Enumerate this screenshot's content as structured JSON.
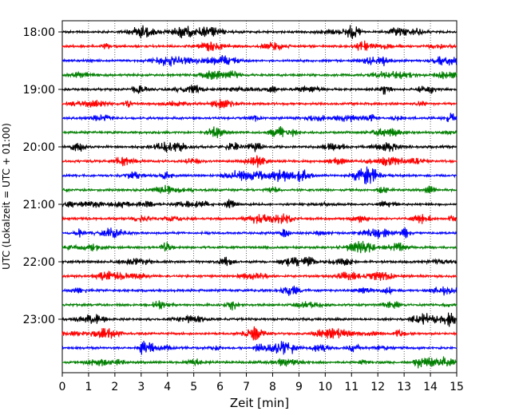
{
  "chart_data": {
    "type": "line",
    "subtype": "helicorder",
    "xlabel": "Zeit  [min]",
    "ylabel": "UTC (Lokalzeit = UTC + 01:00)",
    "xlim": [
      0,
      15
    ],
    "x_ticks": [
      "0",
      "1",
      "2",
      "3",
      "4",
      "5",
      "6",
      "7",
      "8",
      "9",
      "10",
      "11",
      "12",
      "13",
      "14",
      "15"
    ],
    "y_tick_labels": [
      "18:00",
      "19:00",
      "20:00",
      "21:00",
      "22:00",
      "23:00"
    ],
    "traces_per_hour": 4,
    "trace_count": 24,
    "trace_colors": [
      "#000000",
      "#ff0000",
      "#0000ff",
      "#007f00"
    ],
    "grid": "vertical dotted at each minute"
  }
}
